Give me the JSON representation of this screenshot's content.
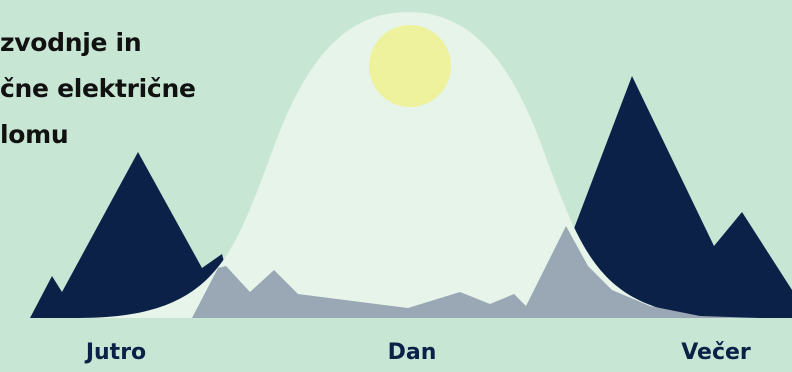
{
  "title_lines": [
    "zvodnje in",
    "čne električne",
    "lomu"
  ],
  "time_labels": {
    "morning": "Jutro",
    "day": "Dan",
    "evening": "Večer"
  },
  "colors": {
    "background": "#c8e6d4",
    "consumption_peaks": "#0b2147",
    "solar_curve": "#e6f4ea",
    "overlap": "#9aa8b6",
    "sun": "#eef29c",
    "title_text": "#111111",
    "label_text": "#0b2147"
  }
}
